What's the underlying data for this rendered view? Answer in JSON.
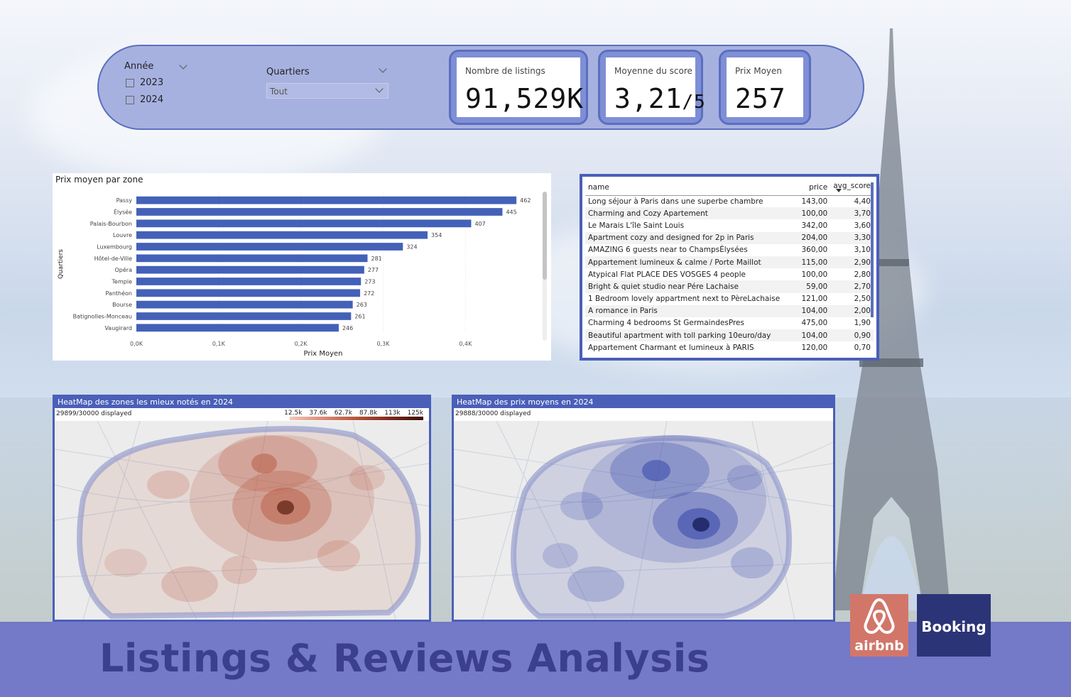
{
  "filters": {
    "year_title": "Année",
    "years": [
      "2023",
      "2024"
    ],
    "quartiers_title": "Quartiers",
    "quartiers_selected": "Tout"
  },
  "kpis": [
    {
      "label": "Nombre de listings",
      "value": "91,529K",
      "suffix": ""
    },
    {
      "label": "Moyenne du score",
      "value": "3,21",
      "suffix": "/5"
    },
    {
      "label": "Prix Moyen",
      "value": "257",
      "suffix": ""
    }
  ],
  "chart_data": {
    "type": "bar",
    "orientation": "horizontal",
    "title": "Prix moyen par zone",
    "xlabel": "Prix Moyen",
    "ylabel": "Quartiers",
    "categories": [
      "Passy",
      "Élysée",
      "Palais-Bourbon",
      "Louvre",
      "Luxembourg",
      "Hôtel-de-Ville",
      "Opéra",
      "Temple",
      "Panthéon",
      "Bourse",
      "Batignolles-Monceau",
      "Vaugirard"
    ],
    "values": [
      462,
      445,
      407,
      354,
      324,
      281,
      277,
      273,
      272,
      263,
      261,
      246
    ],
    "xlim": [
      0,
      480
    ],
    "xticks": [
      0,
      100,
      200,
      300,
      400
    ],
    "xtick_labels": [
      "0,0K",
      "0,1K",
      "0,2K",
      "0,3K",
      "0,4K"
    ],
    "bar_color": "#4461b8"
  },
  "table": {
    "columns": [
      "name",
      "price",
      "avg_score"
    ],
    "rows": [
      [
        "Long séjour à Paris dans une superbe chambre",
        "143,00",
        "4,40"
      ],
      [
        "Charming and Cozy Apartement",
        "100,00",
        "3,70"
      ],
      [
        "Le Marais L'île Saint Louis",
        "342,00",
        "3,60"
      ],
      [
        "Apartment cozy and designed for 2p in Paris",
        "204,00",
        "3,30"
      ],
      [
        "AMAZING 6 guests near to ChampsÉlysées",
        "360,00",
        "3,10"
      ],
      [
        "Appartement lumineux & calme / Porte Maillot",
        "115,00",
        "2,90"
      ],
      [
        "Atypical Flat PLACE DES VOSGES 4 people",
        "100,00",
        "2,80"
      ],
      [
        "Bright & quiet studio near Pére Lachaise",
        "59,00",
        "2,70"
      ],
      [
        "1 Bedroom lovely appartment next to PèreLachaise",
        "121,00",
        "2,50"
      ],
      [
        "A romance in Paris",
        "104,00",
        "2,00"
      ],
      [
        "Charming 4 bedrooms St GermaindesPres",
        "475,00",
        "1,90"
      ],
      [
        "Beautiful apartment with toll parking 10euro/day",
        "104,00",
        "0,90"
      ],
      [
        "Appartement Charmant et lumineux à PARIS",
        "120,00",
        "0,70"
      ]
    ]
  },
  "maps": {
    "rating": {
      "title": "HeatMap des zones les mieux notés en 2024",
      "displayed": "29899/30000 displayed",
      "legend": [
        "12.5k",
        "37.6k",
        "62.7k",
        "87.8k",
        "113k",
        "125k"
      ],
      "color": "#b8553c"
    },
    "price": {
      "title": "HeatMap des prix moyens en 2024",
      "displayed": "29888/30000 displayed",
      "color": "#2d3fa8"
    }
  },
  "footer": {
    "title": "Listings & Reviews Analysis",
    "airbnb": "airbnb",
    "booking": "Booking"
  }
}
